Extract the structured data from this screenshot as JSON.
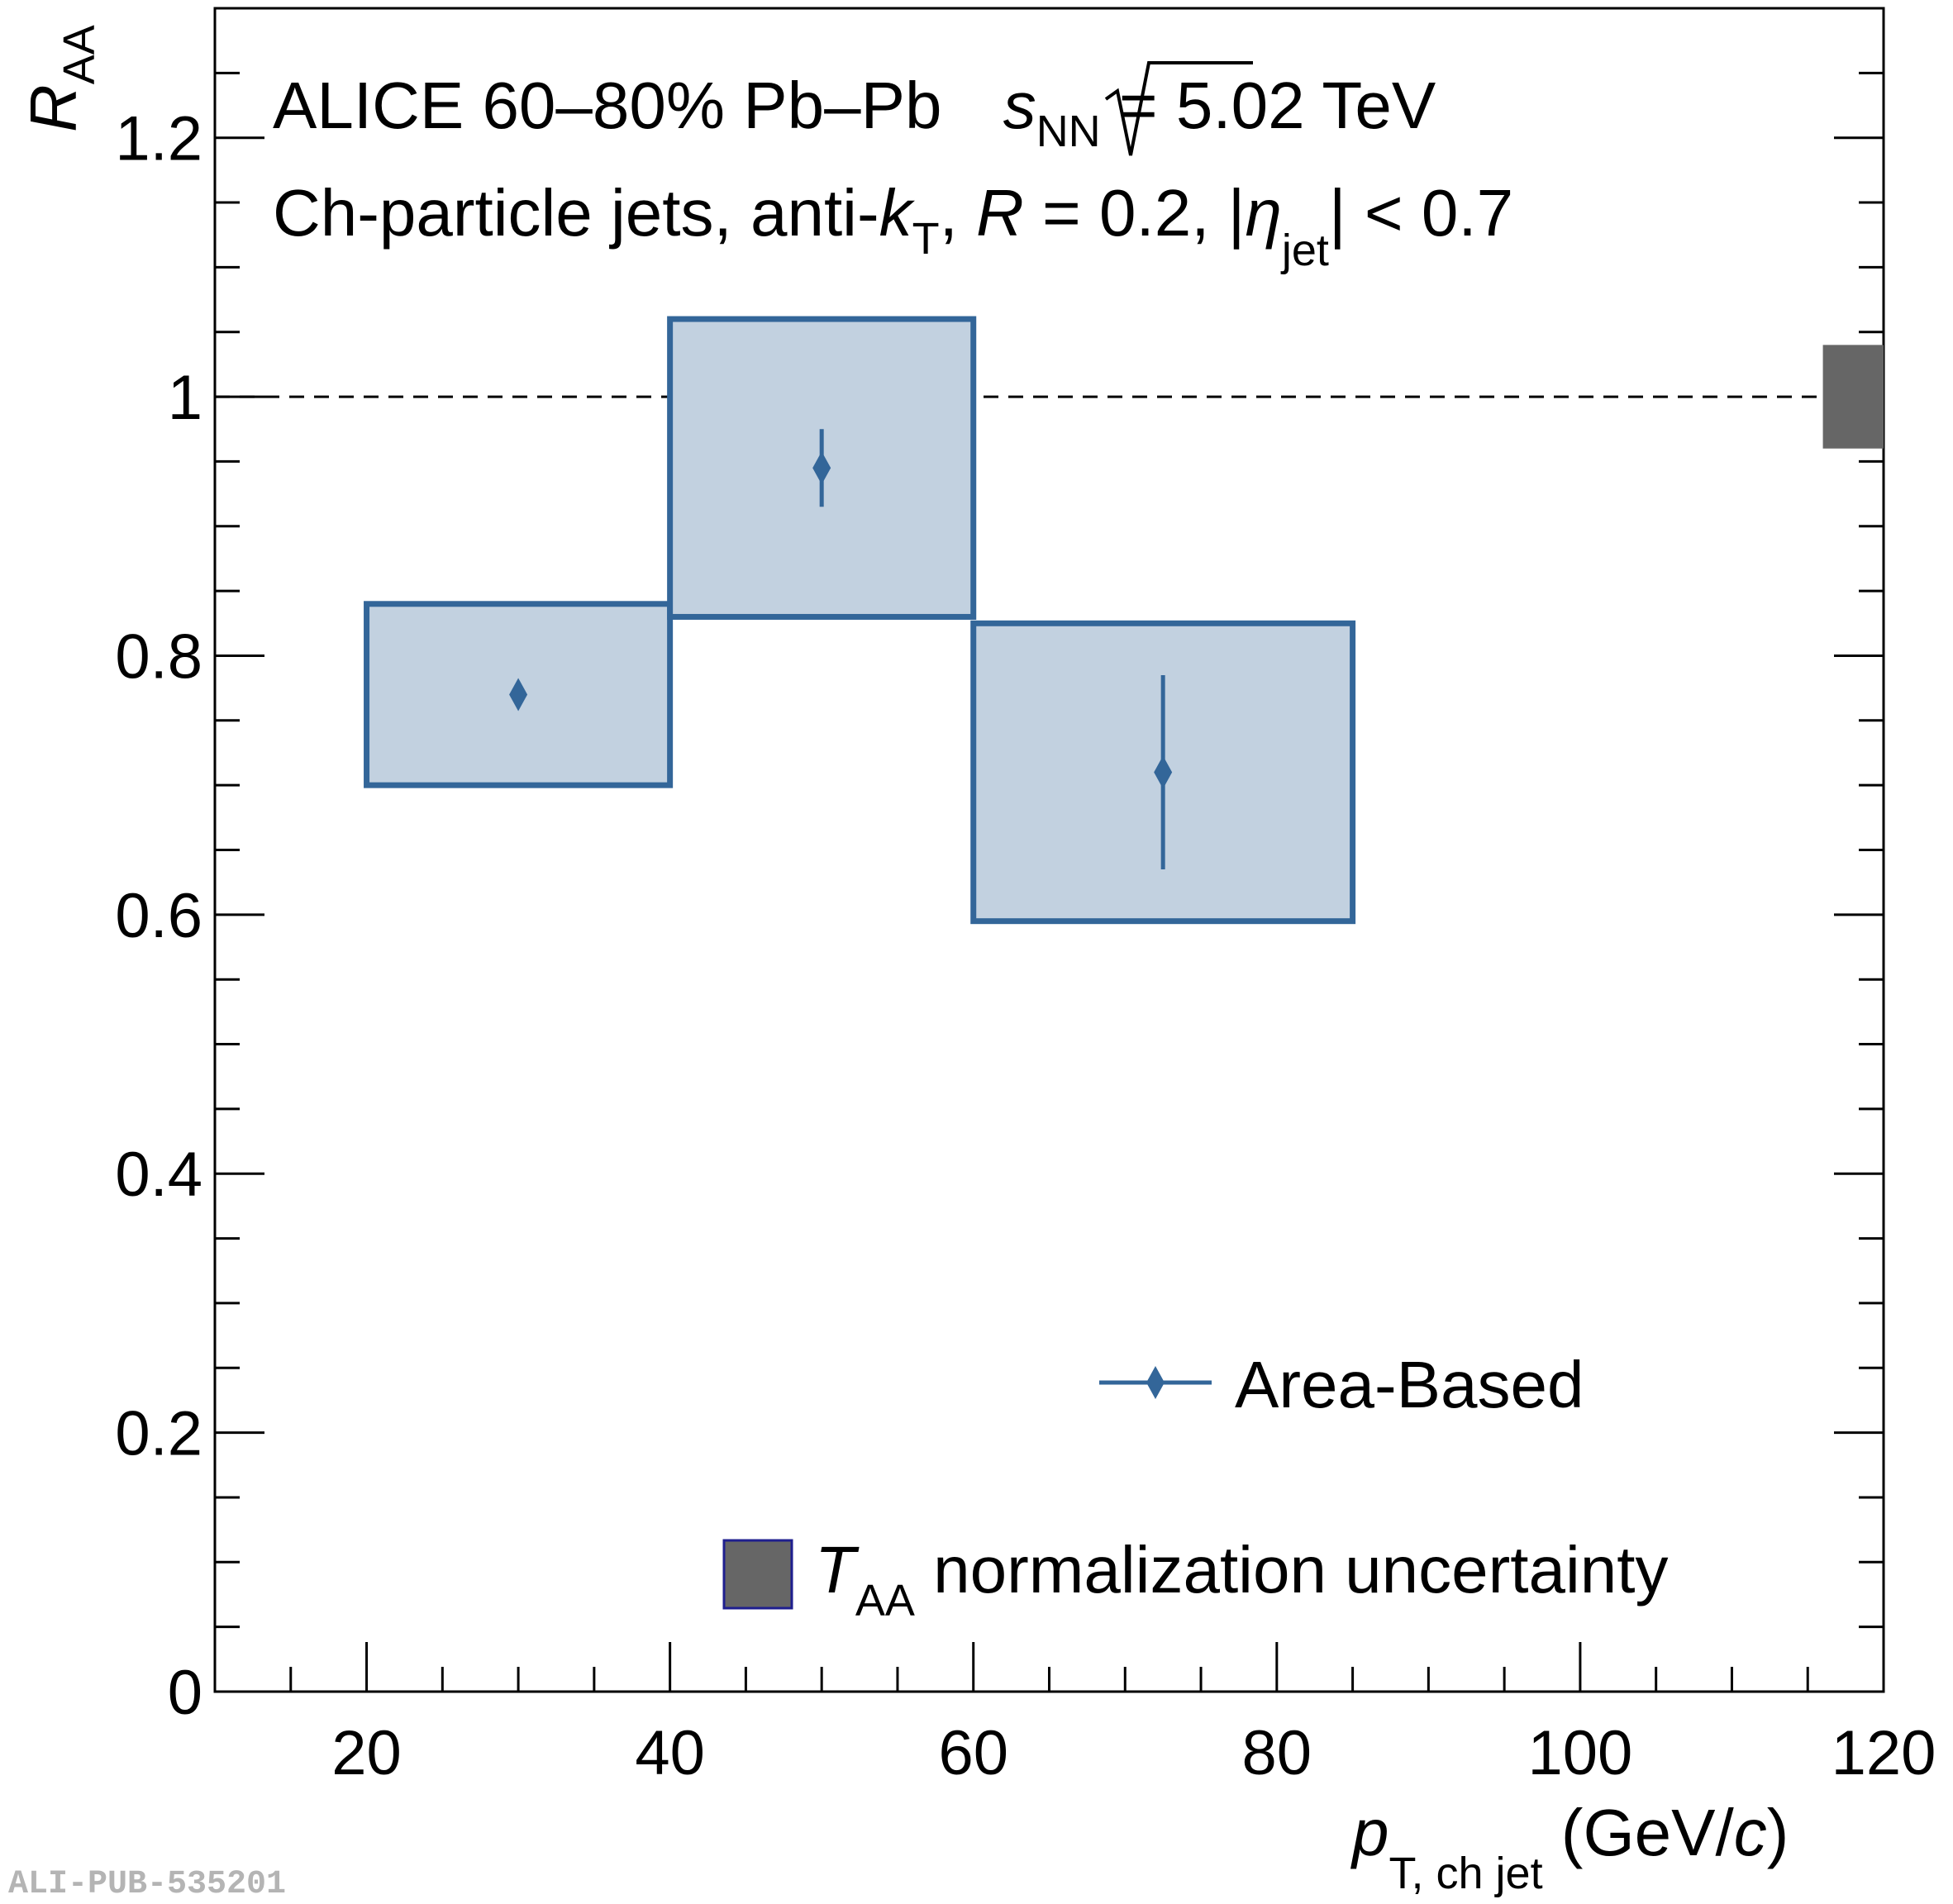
{
  "chart_data": {
    "type": "scatter",
    "header_line1": {
      "main": "ALICE 60–80% Pb–Pb ",
      "sqrt_s": "s",
      "sqrt_sub": "NN",
      "energy": " = 5.02 TeV"
    },
    "header_line2": {
      "a": "Ch-particle jets, anti-",
      "k": "k",
      "k_sub": "T",
      "b": ", ",
      "r": "R",
      "c": " = 0.2, |",
      "eta": "η",
      "eta_sub": "jet",
      "d": "| < 0.7"
    },
    "xlabel": {
      "p": "p",
      "sub": "T, ch jet",
      "unit": " (GeV/",
      "c": "c",
      "close": ")"
    },
    "ylabel": {
      "r": "R",
      "sub": "AA"
    },
    "xlim": [
      10,
      120
    ],
    "ylim": [
      0,
      1.3
    ],
    "x_ticks": [
      20,
      40,
      60,
      80,
      100,
      120
    ],
    "y_ticks": [
      0,
      0.2,
      0.4,
      0.6,
      0.8,
      1,
      1.2
    ],
    "x_tick_labels": [
      "20",
      "40",
      "60",
      "80",
      "100",
      "120"
    ],
    "y_tick_labels": [
      "0",
      "0.2",
      "0.4",
      "0.6",
      "0.8",
      "1",
      "1.2"
    ],
    "reference_line": 1,
    "series": [
      {
        "name": "Area-Based",
        "color": "#336699",
        "fill": "#c2d1e0",
        "points": [
          {
            "x": 30,
            "y": 0.77,
            "stat_low": 0.77,
            "stat_high": 0.77,
            "sys_x": [
              20,
              40
            ],
            "sys_y": [
              0.7,
              0.84
            ]
          },
          {
            "x": 50,
            "y": 0.945,
            "stat_low": 0.915,
            "stat_high": 0.975,
            "sys_x": [
              40,
              60
            ],
            "sys_y": [
              0.83,
              1.06
            ]
          },
          {
            "x": 72.5,
            "y": 0.71,
            "stat_low": 0.635,
            "stat_high": 0.785,
            "sys_x": [
              60,
              85
            ],
            "sys_y": [
              0.595,
              0.825
            ]
          }
        ]
      }
    ],
    "normalization_uncertainty": {
      "x": [
        116,
        120
      ],
      "y": [
        0.96,
        1.04
      ],
      "color": "#666666"
    },
    "legend": {
      "position": "bottom-right",
      "entries": [
        {
          "label": "Area-Based"
        },
        {
          "label_sym": "T",
          "label_sub": "AA",
          "label_rest": " normalization uncertainty"
        }
      ]
    }
  },
  "watermark": "ALI-PUB-535201"
}
